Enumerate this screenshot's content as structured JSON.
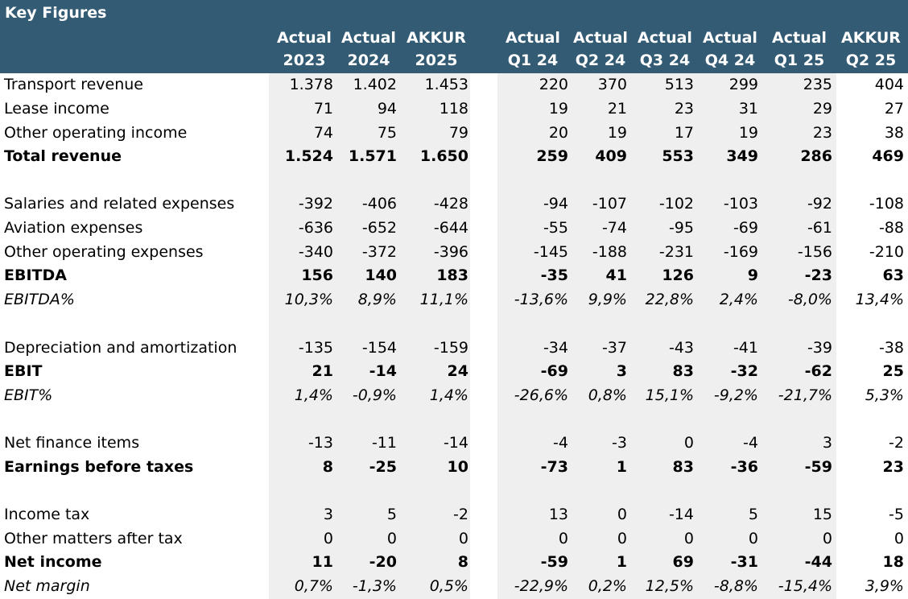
{
  "header": {
    "title": "Key Figures",
    "columns": [
      {
        "line1": "Actual",
        "line2": "2023"
      },
      {
        "line1": "Actual",
        "line2": "2024"
      },
      {
        "line1": "AKKUR",
        "line2": "2025"
      },
      {
        "line1": "Actual",
        "line2": "Q1 24"
      },
      {
        "line1": "Actual",
        "line2": "Q2 24"
      },
      {
        "line1": "Actual",
        "line2": "Q3 24"
      },
      {
        "line1": "Actual",
        "line2": "Q4 24"
      },
      {
        "line1": "Actual",
        "line2": "Q1 25"
      },
      {
        "line1": "AKKUR",
        "line2": "Q2 25"
      }
    ]
  },
  "colors": {
    "header_bg": "#335B74",
    "header_text": "#FFFFFF",
    "shaded_column_bg": "#EFEFEF"
  },
  "rows": [
    {
      "label": "Transport revenue",
      "style": "normal",
      "values": [
        "1.378",
        "1.402",
        "1.453",
        "220",
        "370",
        "513",
        "299",
        "235",
        "404"
      ]
    },
    {
      "label": "Lease income",
      "style": "normal",
      "values": [
        "71",
        "94",
        "118",
        "19",
        "21",
        "23",
        "31",
        "29",
        "27"
      ]
    },
    {
      "label": "Other operating income",
      "style": "normal",
      "values": [
        "74",
        "75",
        "79",
        "20",
        "19",
        "17",
        "19",
        "23",
        "38"
      ]
    },
    {
      "label": "Total revenue",
      "style": "bold",
      "values": [
        "1.524",
        "1.571",
        "1.650",
        "259",
        "409",
        "553",
        "349",
        "286",
        "469"
      ]
    },
    {
      "label": "Salaries and related expenses",
      "style": "normal",
      "values": [
        "-392",
        "-406",
        "-428",
        "-94",
        "-107",
        "-102",
        "-103",
        "-92",
        "-108"
      ]
    },
    {
      "label": "Aviation expenses",
      "style": "normal",
      "values": [
        "-636",
        "-652",
        "-644",
        "-55",
        "-74",
        "-95",
        "-69",
        "-61",
        "-88"
      ]
    },
    {
      "label": "Other operating expenses",
      "style": "normal",
      "values": [
        "-340",
        "-372",
        "-396",
        "-145",
        "-188",
        "-231",
        "-169",
        "-156",
        "-210"
      ]
    },
    {
      "label": "EBITDA",
      "style": "bold",
      "values": [
        "156",
        "140",
        "183",
        "-35",
        "41",
        "126",
        "9",
        "-23",
        "63"
      ]
    },
    {
      "label": "EBITDA%",
      "style": "italic",
      "values": [
        "10,3%",
        "8,9%",
        "11,1%",
        "-13,6%",
        "9,9%",
        "22,8%",
        "2,4%",
        "-8,0%",
        "13,4%"
      ]
    },
    {
      "label": "Depreciation and amortization",
      "style": "normal",
      "values": [
        "-135",
        "-154",
        "-159",
        "-34",
        "-37",
        "-43",
        "-41",
        "-39",
        "-38"
      ]
    },
    {
      "label": "EBIT",
      "style": "bold",
      "values": [
        "21",
        "-14",
        "24",
        "-69",
        "3",
        "83",
        "-32",
        "-62",
        "25"
      ]
    },
    {
      "label": "EBIT%",
      "style": "italic",
      "values": [
        "1,4%",
        "-0,9%",
        "1,4%",
        "-26,6%",
        "0,8%",
        "15,1%",
        "-9,2%",
        "-21,7%",
        "5,3%"
      ]
    },
    {
      "label": "Net finance items",
      "style": "normal",
      "values": [
        "-13",
        "-11",
        "-14",
        "-4",
        "-3",
        "0",
        "-4",
        "3",
        "-2"
      ]
    },
    {
      "label": "Earnings before taxes",
      "style": "bold",
      "values": [
        "8",
        "-25",
        "10",
        "-73",
        "1",
        "83",
        "-36",
        "-59",
        "23"
      ]
    },
    {
      "label": "Income tax",
      "style": "normal",
      "values": [
        "3",
        "5",
        "-2",
        "13",
        "0",
        "-14",
        "5",
        "15",
        "-5"
      ]
    },
    {
      "label": "Other matters after tax",
      "style": "normal",
      "values": [
        "0",
        "0",
        "0",
        "0",
        "0",
        "0",
        "0",
        "0",
        "0"
      ]
    },
    {
      "label": "Net income",
      "style": "bold",
      "values": [
        "11",
        "-20",
        "8",
        "-59",
        "1",
        "69",
        "-31",
        "-44",
        "18"
      ]
    },
    {
      "label": "Net margin",
      "style": "italic",
      "values": [
        "0,7%",
        "-1,3%",
        "0,5%",
        "-22,9%",
        "0,2%",
        "12,5%",
        "-8,8%",
        "-15,4%",
        "3,9%"
      ]
    }
  ]
}
